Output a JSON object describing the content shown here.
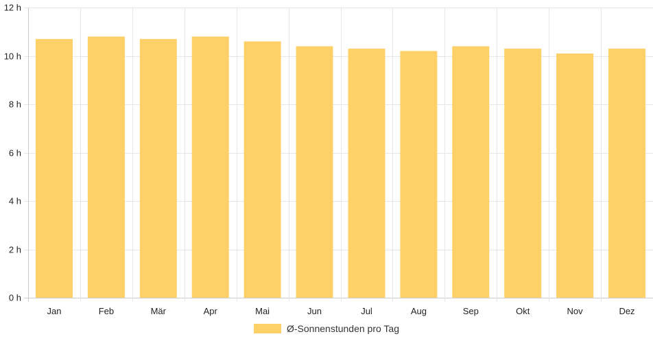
{
  "chart_data": {
    "type": "bar",
    "categories": [
      "Jan",
      "Feb",
      "Mär",
      "Apr",
      "Mai",
      "Jun",
      "Jul",
      "Aug",
      "Sep",
      "Okt",
      "Nov",
      "Dez"
    ],
    "series": [
      {
        "name": "Ø-Sonnenstunden pro Tag",
        "values": [
          10.7,
          10.8,
          10.7,
          10.8,
          10.6,
          10.4,
          10.3,
          10.2,
          10.4,
          10.3,
          10.1,
          10.3
        ]
      }
    ],
    "ylim": [
      0,
      12
    ],
    "yticks": [
      0,
      2,
      4,
      6,
      8,
      10,
      12
    ],
    "ytick_labels": [
      "0 h",
      "2 h",
      "4 h",
      "6 h",
      "8 h",
      "10 h",
      "12 h"
    ],
    "grid": true,
    "legend_position": "bottom",
    "colors": {
      "bar": "#fdd068",
      "grid": "#e6e6e6",
      "axis": "#cccccc"
    }
  }
}
